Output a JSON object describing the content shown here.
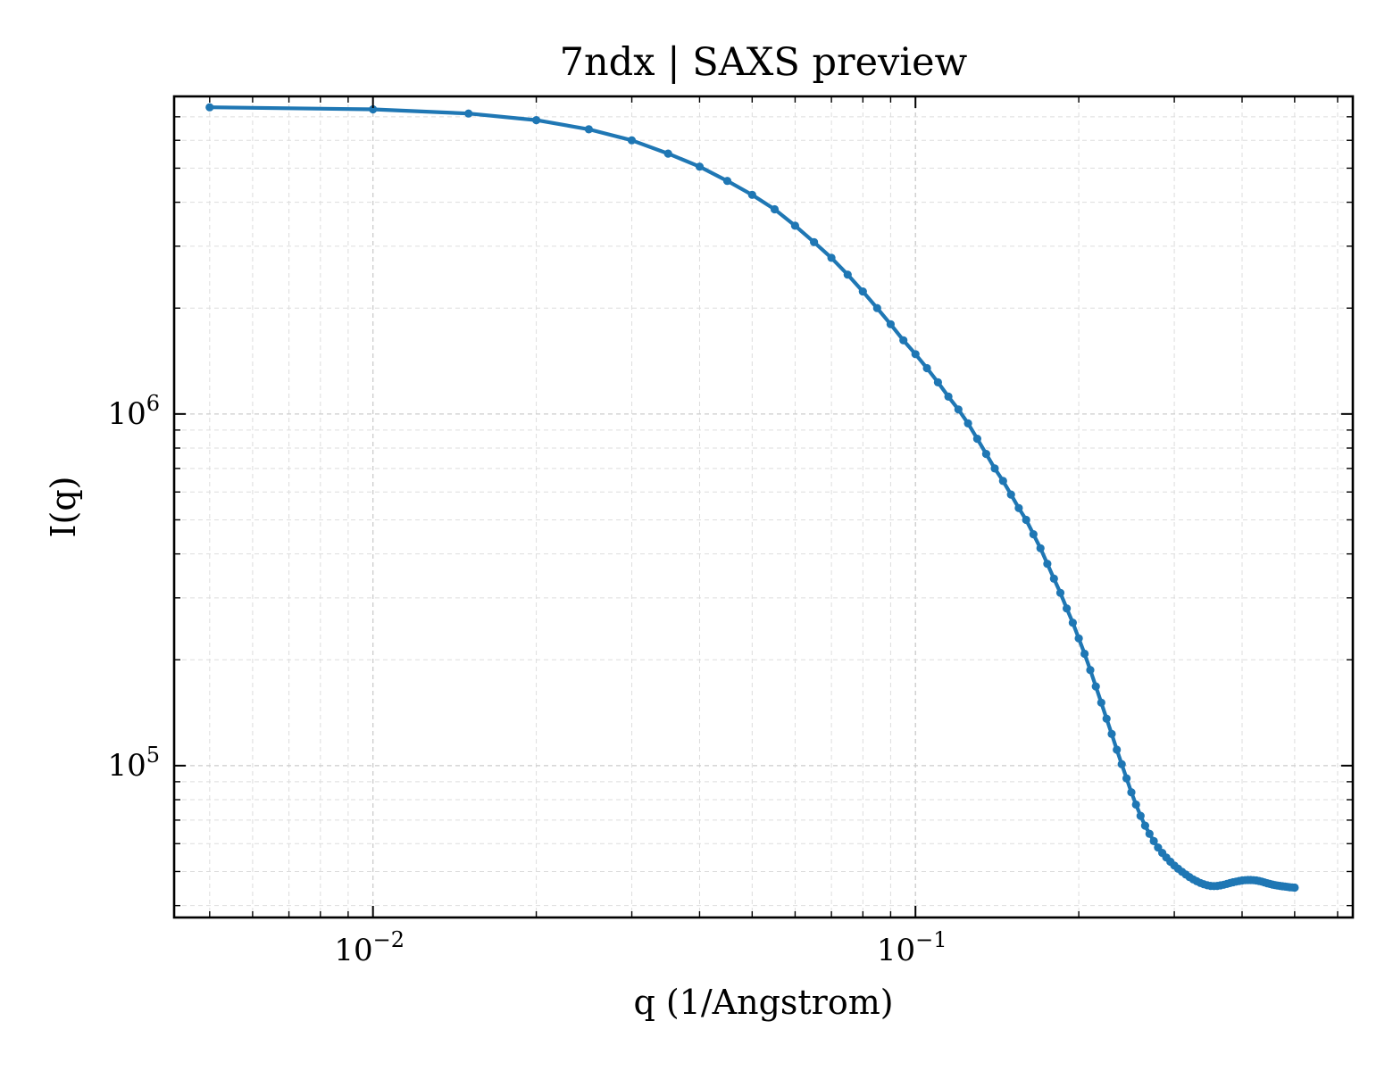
{
  "chart_data": {
    "type": "line",
    "title": "7ndx | SAXS preview",
    "xlabel": "q (1/Angstrom)",
    "ylabel": "I(q)",
    "xscale": "log",
    "yscale": "log",
    "xlim": [
      0.0043,
      0.64
    ],
    "ylim": [
      37000,
      8000000
    ],
    "grid": true,
    "legend": "none",
    "x_ticks": [
      {
        "value": 0.01,
        "base": "10",
        "exp": "−2"
      },
      {
        "value": 0.1,
        "base": "10",
        "exp": "−1"
      }
    ],
    "y_ticks": [
      {
        "value": 100000,
        "base": "10",
        "exp": "5"
      },
      {
        "value": 1000000,
        "base": "10",
        "exp": "6"
      }
    ],
    "series": [
      {
        "color": "#1f77b4",
        "marker": "circle",
        "x": [
          0.005,
          0.01,
          0.015,
          0.02,
          0.025,
          0.03,
          0.035,
          0.04,
          0.045,
          0.05,
          0.055,
          0.06,
          0.065,
          0.07,
          0.075,
          0.08,
          0.085,
          0.09,
          0.095,
          0.1,
          0.105,
          0.11,
          0.115,
          0.12,
          0.125,
          0.13,
          0.135,
          0.14,
          0.145,
          0.15,
          0.155,
          0.16,
          0.165,
          0.17,
          0.175,
          0.18,
          0.185,
          0.19,
          0.195,
          0.2,
          0.205,
          0.21,
          0.215,
          0.22,
          0.225,
          0.23,
          0.235,
          0.24,
          0.245,
          0.25,
          0.255,
          0.26,
          0.265,
          0.27,
          0.275,
          0.28,
          0.285,
          0.29,
          0.295,
          0.3,
          0.305,
          0.31,
          0.315,
          0.32,
          0.325,
          0.33,
          0.335,
          0.34,
          0.345,
          0.35,
          0.355,
          0.36,
          0.365,
          0.37,
          0.375,
          0.38,
          0.385,
          0.39,
          0.395,
          0.4,
          0.405,
          0.41,
          0.415,
          0.42,
          0.425,
          0.43,
          0.435,
          0.44,
          0.445,
          0.45,
          0.455,
          0.46,
          0.465,
          0.47,
          0.475,
          0.48,
          0.485,
          0.49,
          0.495,
          0.5
        ],
        "y": [
          7450000,
          7350000,
          7150000,
          6850000,
          6450000,
          6000000,
          5500000,
          5050000,
          4600000,
          4200000,
          3820000,
          3430000,
          3080000,
          2780000,
          2490000,
          2230000,
          2000000,
          1800000,
          1620000,
          1480000,
          1350000,
          1230000,
          1120000,
          1030000,
          940000,
          850000,
          770000,
          700000,
          645000,
          590000,
          540000,
          500000,
          455000,
          415000,
          375000,
          340000,
          310000,
          280000,
          255000,
          230000,
          208000,
          187000,
          168000,
          151000,
          136000,
          123000,
          111000,
          101000,
          92000,
          84000,
          77500,
          72000,
          67500,
          64000,
          61000,
          58500,
          56500,
          54800,
          53300,
          52000,
          50900,
          49900,
          49000,
          48200,
          47500,
          46900,
          46400,
          46000,
          45700,
          45500,
          45450,
          45500,
          45650,
          45850,
          46100,
          46350,
          46600,
          46800,
          47000,
          47150,
          47250,
          47300,
          47300,
          47250,
          47150,
          47000,
          46800,
          46550,
          46300,
          46100,
          45900,
          45750,
          45600,
          45500,
          45400,
          45300,
          45200,
          45100,
          45050,
          45000
        ]
      }
    ]
  }
}
